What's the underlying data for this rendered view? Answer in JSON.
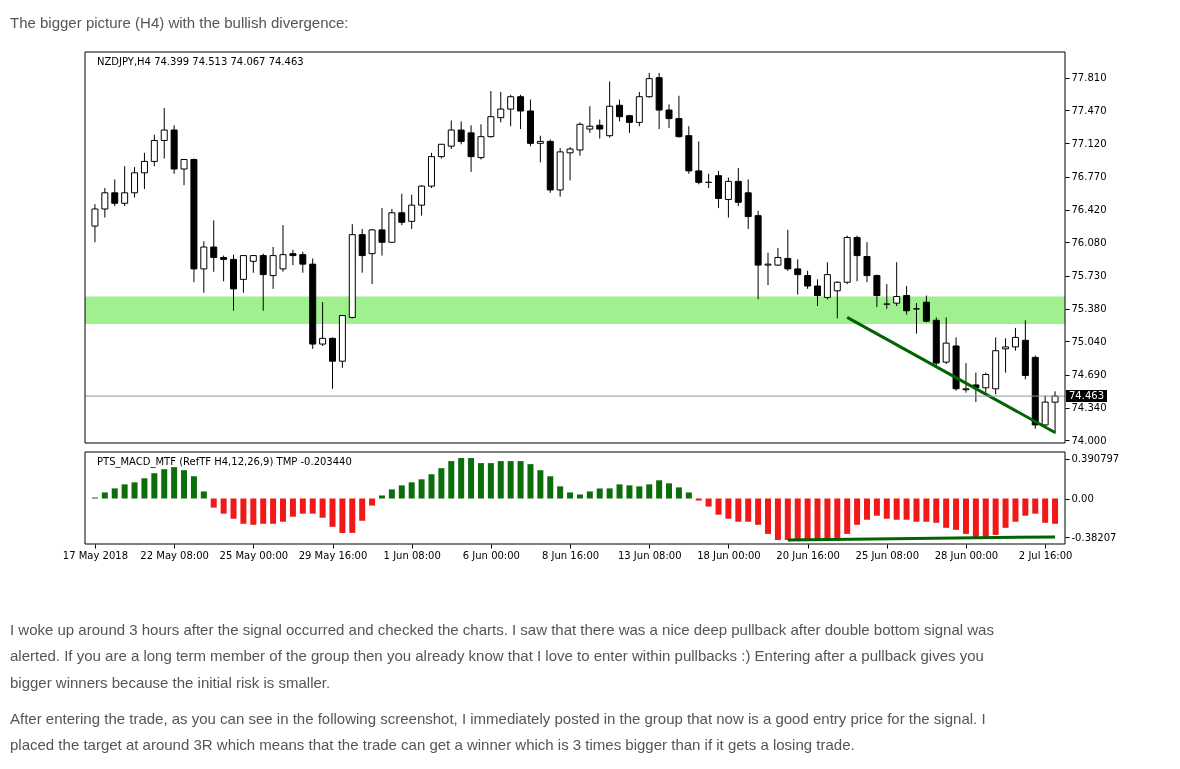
{
  "chart_data": [
    {
      "type": "candlestick",
      "title": "NZDJPY,H4  74.399 74.513 74.067 74.463",
      "annotations": [
        "The bigger picture (H4) with the bullish divergence:"
      ],
      "categories": [
        null,
        null,
        null,
        null,
        null,
        null,
        null,
        null,
        null,
        null,
        null,
        null,
        null,
        null,
        null,
        null,
        null,
        null,
        null,
        null,
        null,
        null,
        null,
        null,
        null,
        null,
        null,
        null,
        null,
        null,
        null,
        null,
        null,
        null,
        null,
        null,
        null,
        null,
        null,
        null,
        null,
        null,
        null,
        null,
        null,
        null,
        null,
        null,
        null,
        null,
        null,
        null,
        null,
        null,
        null,
        null,
        null,
        null,
        null,
        null,
        null,
        null,
        null,
        null,
        null,
        null,
        null,
        null,
        null,
        null,
        null,
        null,
        null,
        null,
        null,
        null,
        null,
        null,
        null,
        null,
        null,
        null,
        null,
        null,
        null,
        null,
        null,
        null,
        null,
        null,
        null,
        null,
        null,
        null,
        null,
        null,
        null,
        null
      ],
      "ohlc": [
        [
          76.25,
          76.48,
          76.08,
          76.43
        ],
        [
          76.43,
          76.65,
          76.34,
          76.6
        ],
        [
          76.6,
          76.74,
          76.46,
          76.49
        ],
        [
          76.49,
          76.88,
          76.46,
          76.6
        ],
        [
          76.6,
          76.87,
          76.55,
          76.81
        ],
        [
          76.81,
          77.02,
          76.64,
          76.93
        ],
        [
          76.93,
          77.21,
          76.88,
          77.15
        ],
        [
          77.15,
          77.49,
          76.96,
          77.26
        ],
        [
          77.26,
          77.31,
          76.8,
          76.85
        ],
        [
          76.85,
          76.95,
          76.68,
          76.95
        ],
        [
          76.95,
          76.96,
          75.66,
          75.8
        ],
        [
          75.8,
          76.09,
          75.55,
          76.03
        ],
        [
          76.03,
          76.31,
          75.77,
          75.92
        ],
        [
          75.92,
          75.94,
          75.67,
          75.9
        ],
        [
          75.9,
          75.95,
          75.36,
          75.59
        ],
        [
          75.69,
          75.94,
          75.55,
          75.94
        ],
        [
          75.88,
          75.94,
          75.76,
          75.94
        ],
        [
          75.94,
          75.96,
          75.36,
          75.74
        ],
        [
          75.73,
          76.03,
          75.59,
          75.94
        ],
        [
          75.8,
          76.26,
          75.77,
          75.95
        ],
        [
          75.96,
          76.0,
          75.84,
          75.94
        ],
        [
          75.95,
          75.98,
          75.76,
          75.85
        ],
        [
          75.85,
          75.91,
          74.96,
          75.01
        ],
        [
          75.01,
          75.45,
          74.99,
          75.07
        ],
        [
          75.07,
          75.08,
          74.54,
          74.83
        ],
        [
          74.83,
          75.31,
          74.76,
          75.31
        ],
        [
          75.29,
          76.27,
          75.28,
          76.16
        ],
        [
          76.16,
          76.22,
          75.76,
          75.94
        ],
        [
          75.96,
          76.22,
          75.64,
          76.21
        ],
        [
          76.21,
          76.44,
          75.94,
          76.08
        ],
        [
          76.08,
          76.43,
          76.08,
          76.39
        ],
        [
          76.39,
          76.59,
          76.26,
          76.29
        ],
        [
          76.3,
          76.58,
          76.22,
          76.47
        ],
        [
          76.47,
          76.68,
          76.36,
          76.67
        ],
        [
          76.67,
          77.02,
          76.65,
          76.98
        ],
        [
          76.98,
          77.11,
          76.96,
          77.11
        ],
        [
          77.09,
          77.36,
          77.06,
          77.26
        ],
        [
          77.26,
          77.35,
          77.11,
          77.14
        ],
        [
          77.23,
          77.31,
          76.82,
          76.98
        ],
        [
          76.97,
          77.32,
          76.95,
          77.19
        ],
        [
          77.19,
          77.67,
          77.18,
          77.4
        ],
        [
          77.39,
          77.66,
          77.34,
          77.48
        ],
        [
          77.48,
          77.63,
          77.3,
          77.61
        ],
        [
          77.61,
          77.63,
          77.27,
          77.46
        ],
        [
          77.46,
          77.58,
          77.09,
          77.12
        ],
        [
          77.12,
          77.2,
          76.92,
          77.14
        ],
        [
          77.14,
          77.16,
          76.6,
          76.63
        ],
        [
          76.63,
          77.07,
          76.56,
          77.03
        ],
        [
          77.02,
          77.08,
          76.73,
          77.06
        ],
        [
          77.05,
          77.34,
          76.99,
          77.32
        ],
        [
          77.27,
          77.51,
          77.23,
          77.3
        ],
        [
          77.31,
          77.37,
          77.17,
          77.27
        ],
        [
          77.2,
          77.77,
          77.18,
          77.51
        ],
        [
          77.52,
          77.58,
          77.35,
          77.4
        ],
        [
          77.41,
          77.42,
          77.23,
          77.34
        ],
        [
          77.34,
          77.66,
          77.3,
          77.61
        ],
        [
          77.61,
          77.86,
          77.6,
          77.8
        ],
        [
          77.81,
          77.86,
          77.27,
          77.47
        ],
        [
          77.47,
          77.53,
          77.28,
          77.38
        ],
        [
          77.38,
          77.62,
          77.18,
          77.19
        ],
        [
          77.2,
          77.3,
          76.8,
          76.83
        ],
        [
          76.83,
          77.14,
          76.69,
          76.71
        ],
        [
          76.71,
          76.8,
          76.65,
          76.71
        ],
        [
          76.78,
          76.83,
          76.44,
          76.54
        ],
        [
          76.53,
          76.76,
          76.34,
          76.72
        ],
        [
          76.72,
          76.86,
          76.46,
          76.5
        ],
        [
          76.6,
          76.74,
          76.22,
          76.35
        ],
        [
          76.36,
          76.41,
          75.48,
          75.84
        ],
        [
          75.84,
          75.97,
          75.63,
          75.85
        ],
        [
          75.84,
          76.02,
          75.83,
          75.92
        ],
        [
          75.91,
          76.21,
          75.78,
          75.8
        ],
        [
          75.8,
          75.9,
          75.53,
          75.74
        ],
        [
          75.73,
          75.78,
          75.59,
          75.62
        ],
        [
          75.62,
          75.69,
          75.41,
          75.52
        ],
        [
          75.5,
          75.87,
          75.48,
          75.74
        ],
        [
          75.57,
          75.67,
          75.28,
          75.66
        ],
        [
          75.66,
          76.15,
          75.64,
          76.13
        ],
        [
          76.13,
          76.15,
          75.67,
          75.94
        ],
        [
          75.93,
          76.08,
          75.66,
          75.73
        ],
        [
          75.73,
          75.74,
          75.4,
          75.52
        ],
        [
          75.43,
          75.64,
          75.38,
          75.43
        ],
        [
          75.44,
          75.87,
          75.41,
          75.51
        ],
        [
          75.52,
          75.62,
          75.32,
          75.36
        ],
        [
          75.38,
          75.44,
          75.12,
          75.38
        ],
        [
          75.45,
          75.52,
          75.24,
          75.25
        ],
        [
          75.26,
          75.29,
          74.78,
          74.81
        ],
        [
          74.82,
          75.29,
          74.8,
          75.02
        ],
        [
          74.99,
          75.08,
          74.52,
          74.54
        ],
        [
          74.53,
          74.81,
          74.5,
          74.54
        ],
        [
          74.58,
          74.71,
          74.4,
          74.55
        ],
        [
          74.55,
          74.71,
          74.5,
          74.69
        ],
        [
          74.54,
          75.08,
          74.48,
          74.94
        ],
        [
          74.96,
          75.07,
          74.71,
          74.98
        ],
        [
          74.98,
          75.18,
          74.94,
          75.08
        ],
        [
          75.05,
          75.26,
          74.64,
          74.68
        ],
        [
          74.87,
          74.89,
          74.12,
          74.16
        ],
        [
          74.16,
          74.47,
          74.14,
          74.4
        ],
        [
          74.399,
          74.513,
          74.067,
          74.463
        ]
      ],
      "series": [
        {
          "type": "line",
          "color": "#006400",
          "line_style": "solid",
          "values": [
            null,
            null,
            null,
            null,
            null,
            null,
            null,
            null,
            null,
            null,
            null,
            null,
            null,
            null,
            null,
            null,
            null,
            null,
            null,
            null,
            null,
            null,
            null,
            null,
            null,
            null,
            null,
            null,
            null,
            null,
            null,
            null,
            null,
            null,
            null,
            null,
            null,
            null,
            null,
            null,
            null,
            null,
            null,
            null,
            null,
            null,
            null,
            null,
            null,
            null,
            null,
            null,
            null,
            null,
            null,
            null,
            null,
            null,
            null,
            null,
            null,
            null,
            null,
            null,
            null,
            null,
            null,
            null,
            null,
            null,
            null,
            null,
            null,
            null,
            null,
            null,
            75.29,
            null,
            null,
            null,
            null,
            null,
            null,
            null,
            null,
            null,
            null,
            null,
            null,
            null,
            null,
            null,
            null,
            null,
            null,
            null,
            null,
            74.08
          ]
        }
      ],
      "ylim": [
        73.97,
        78.08
      ],
      "yticks": [
        {
          "value": 77.81,
          "label": "77.810"
        },
        {
          "value": 77.47,
          "label": "77.470"
        },
        {
          "value": 77.12,
          "label": "77.120"
        },
        {
          "value": 76.77,
          "label": "76.770"
        },
        {
          "value": 76.42,
          "label": "76.420"
        },
        {
          "value": 76.08,
          "label": "76.080"
        },
        {
          "value": 75.73,
          "label": "75.730"
        },
        {
          "value": 75.38,
          "label": "75.380"
        },
        {
          "value": 75.04,
          "label": "75.040"
        },
        {
          "value": 74.69,
          "label": "74.690"
        },
        {
          "value": 74.34,
          "label": "74.340"
        },
        {
          "value": 74.0,
          "label": "74.000"
        }
      ],
      "ref_lines": [
        {
          "axis": "y",
          "value": 74.463,
          "label": "74.463",
          "color": "#8a98a8"
        }
      ],
      "bands": [
        {
          "axis": "y",
          "from": 75.22,
          "to": 75.51,
          "color": "#a0f090"
        }
      ],
      "tick_labels": "y"
    },
    {
      "type": "bar",
      "title": "PTS_MACD_MTF (RefTF H4,12,26,9) TMP -0.203440",
      "annotations": [
        "I woke up around 3 hours after the signal occurred and checked the charts. I saw that there was a nice deep pullback after double bottom signal was alerted. If you are a long term member of the group then you already know that I love to enter within pullbacks :) Entering after a pullback gives you bigger winners because the initial risk is smaller.",
        "After entering the trade, as you can see in the following screenshot, I immediately posted in the group that now is a good entry price for the signal. I placed the target at around 3R which means that the trade can get a winner which is 3 times bigger than if it gets a losing trade."
      ],
      "categories": [
        "17 May 2018",
        null,
        null,
        null,
        null,
        null,
        null,
        null,
        "22 May 08:00",
        null,
        null,
        null,
        null,
        null,
        null,
        null,
        "25 May 00:00",
        null,
        null,
        null,
        null,
        null,
        null,
        null,
        "29 May 16:00",
        null,
        null,
        null,
        null,
        null,
        null,
        null,
        "1 Jun 08:00",
        null,
        null,
        null,
        null,
        null,
        null,
        null,
        "6 Jun 00:00",
        null,
        null,
        null,
        null,
        null,
        null,
        null,
        "8 Jun 16:00",
        null,
        null,
        null,
        null,
        null,
        null,
        null,
        "13 Jun 08:00",
        null,
        null,
        null,
        null,
        null,
        null,
        null,
        "18 Jun 00:00",
        null,
        null,
        null,
        null,
        null,
        null,
        null,
        "20 Jun 16:00",
        null,
        null,
        null,
        null,
        null,
        null,
        null,
        "25 Jun 08:00",
        null,
        null,
        null,
        null,
        null,
        null,
        null,
        "28 Jun 00:00",
        null,
        null,
        null,
        null,
        null,
        null,
        null,
        "2 Jul 16:00",
        null
      ],
      "series": [
        {
          "type": "bar",
          "values": [
            0.01,
            0.06,
            0.1,
            0.14,
            0.16,
            0.2,
            0.25,
            0.29,
            0.31,
            0.28,
            0.22,
            0.07,
            -0.09,
            -0.15,
            -0.2,
            -0.25,
            -0.26,
            -0.25,
            -0.25,
            -0.23,
            -0.18,
            -0.15,
            -0.15,
            -0.19,
            -0.28,
            -0.34,
            -0.34,
            -0.22,
            -0.07,
            0.03,
            0.09,
            0.13,
            0.16,
            0.19,
            0.24,
            0.3,
            0.37,
            0.4,
            0.4,
            0.35,
            0.35,
            0.37,
            0.37,
            0.37,
            0.34,
            0.28,
            0.22,
            0.12,
            0.06,
            0.04,
            0.07,
            0.1,
            0.1,
            0.14,
            0.13,
            0.12,
            0.14,
            0.18,
            0.15,
            0.11,
            0.06,
            -0.02,
            -0.08,
            -0.16,
            -0.2,
            -0.23,
            -0.23,
            -0.26,
            -0.35,
            -0.41,
            -0.41,
            -0.41,
            -0.41,
            -0.41,
            -0.41,
            -0.39,
            -0.35,
            -0.26,
            -0.21,
            -0.17,
            -0.2,
            -0.21,
            -0.21,
            -0.23,
            -0.23,
            -0.24,
            -0.29,
            -0.31,
            -0.35,
            -0.38,
            -0.38,
            -0.36,
            -0.29,
            -0.23,
            -0.17,
            -0.15,
            -0.24,
            -0.25
          ],
          "colors": [
            "#0b6e0b",
            "#0b6e0b",
            "#0b6e0b",
            "#0b6e0b",
            "#0b6e0b",
            "#0b6e0b",
            "#0b6e0b",
            "#0b6e0b",
            "#0b6e0b",
            "#0b6e0b",
            "#0b6e0b",
            "#0b6e0b",
            "#f01818",
            "#f01818",
            "#f01818",
            "#f01818",
            "#f01818",
            "#f01818",
            "#f01818",
            "#f01818",
            "#f01818",
            "#f01818",
            "#f01818",
            "#f01818",
            "#f01818",
            "#f01818",
            "#f01818",
            "#f01818",
            "#f01818",
            "#0b6e0b",
            "#0b6e0b",
            "#0b6e0b",
            "#0b6e0b",
            "#0b6e0b",
            "#0b6e0b",
            "#0b6e0b",
            "#0b6e0b",
            "#0b6e0b",
            "#0b6e0b",
            "#0b6e0b",
            "#0b6e0b",
            "#0b6e0b",
            "#0b6e0b",
            "#0b6e0b",
            "#0b6e0b",
            "#0b6e0b",
            "#0b6e0b",
            "#0b6e0b",
            "#0b6e0b",
            "#0b6e0b",
            "#0b6e0b",
            "#0b6e0b",
            "#0b6e0b",
            "#0b6e0b",
            "#0b6e0b",
            "#0b6e0b",
            "#0b6e0b",
            "#0b6e0b",
            "#0b6e0b",
            "#0b6e0b",
            "#0b6e0b",
            "#f01818",
            "#f01818",
            "#f01818",
            "#f01818",
            "#f01818",
            "#f01818",
            "#f01818",
            "#f01818",
            "#f01818",
            "#f01818",
            "#f01818",
            "#f01818",
            "#f01818",
            "#f01818",
            "#f01818",
            "#f01818",
            "#f01818",
            "#f01818",
            "#f01818",
            "#f01818",
            "#f01818",
            "#f01818",
            "#f01818",
            "#f01818",
            "#f01818",
            "#f01818",
            "#f01818",
            "#f01818",
            "#f01818",
            "#f01818",
            "#f01818",
            "#f01818",
            "#f01818",
            "#f01818",
            "#f01818",
            "#f01818",
            "#f01818"
          ]
        },
        {
          "type": "line",
          "color": "#006400",
          "line_style": "solid",
          "values": [
            null,
            null,
            null,
            null,
            null,
            null,
            null,
            null,
            null,
            null,
            null,
            null,
            null,
            null,
            null,
            null,
            null,
            null,
            null,
            null,
            null,
            null,
            null,
            null,
            null,
            null,
            null,
            null,
            null,
            null,
            null,
            null,
            null,
            null,
            null,
            null,
            null,
            null,
            null,
            null,
            null,
            null,
            null,
            null,
            null,
            null,
            null,
            null,
            null,
            null,
            null,
            null,
            null,
            null,
            null,
            null,
            null,
            null,
            null,
            null,
            null,
            null,
            null,
            null,
            null,
            null,
            null,
            null,
            null,
            null,
            -0.41,
            null,
            null,
            null,
            null,
            null,
            null,
            null,
            null,
            null,
            null,
            null,
            null,
            null,
            null,
            null,
            null,
            null,
            null,
            null,
            null,
            null,
            null,
            null,
            null,
            null,
            null,
            -0.38
          ]
        }
      ],
      "ylim": [
        -0.45,
        0.46
      ],
      "yticks": [
        {
          "value": 0.390797,
          "label": "0.390797"
        },
        {
          "value": 0,
          "label": "0.00"
        },
        {
          "value": -0.38207,
          "label": "-0.38207"
        }
      ]
    }
  ]
}
